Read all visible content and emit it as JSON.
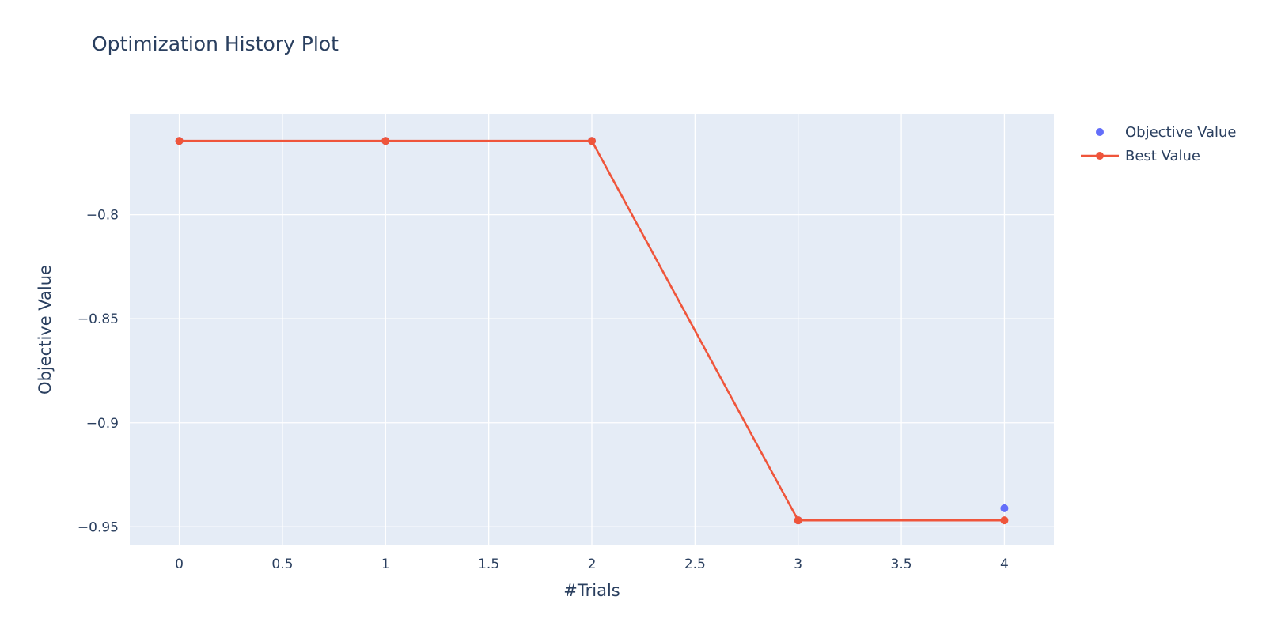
{
  "chart_data": {
    "type": "line",
    "title": "Optimization History Plot",
    "xlabel": "#Trials",
    "ylabel": "Objective Value",
    "xlim": [
      -0.24,
      4.24
    ],
    "ylim": [
      -0.959,
      -0.7515
    ],
    "x_ticks": [
      0,
      0.5,
      1,
      1.5,
      2,
      2.5,
      3,
      3.5,
      4
    ],
    "x_tick_labels": [
      "0",
      "0.5",
      "1",
      "1.5",
      "2",
      "2.5",
      "3",
      "3.5",
      "4"
    ],
    "y_ticks": [
      -0.8,
      -0.85,
      -0.9,
      -0.95
    ],
    "y_tick_labels": [
      "−0.8",
      "−0.85",
      "−0.9",
      "−0.95"
    ],
    "grid": true,
    "legend_position": "top-right, outside plot",
    "plot_background": "#e5ecf6",
    "series": [
      {
        "name": "Objective Value",
        "mode": "markers",
        "color": "#636efa",
        "x": [
          0,
          1,
          2,
          3,
          4
        ],
        "y": [
          -0.7645,
          -0.7645,
          -0.7645,
          -0.9469,
          -0.9411
        ]
      },
      {
        "name": "Best Value",
        "mode": "lines+markers",
        "color": "#ef553b",
        "x": [
          0,
          1,
          2,
          3,
          4
        ],
        "y": [
          -0.7645,
          -0.7645,
          -0.7645,
          -0.9469,
          -0.9469
        ]
      }
    ]
  }
}
